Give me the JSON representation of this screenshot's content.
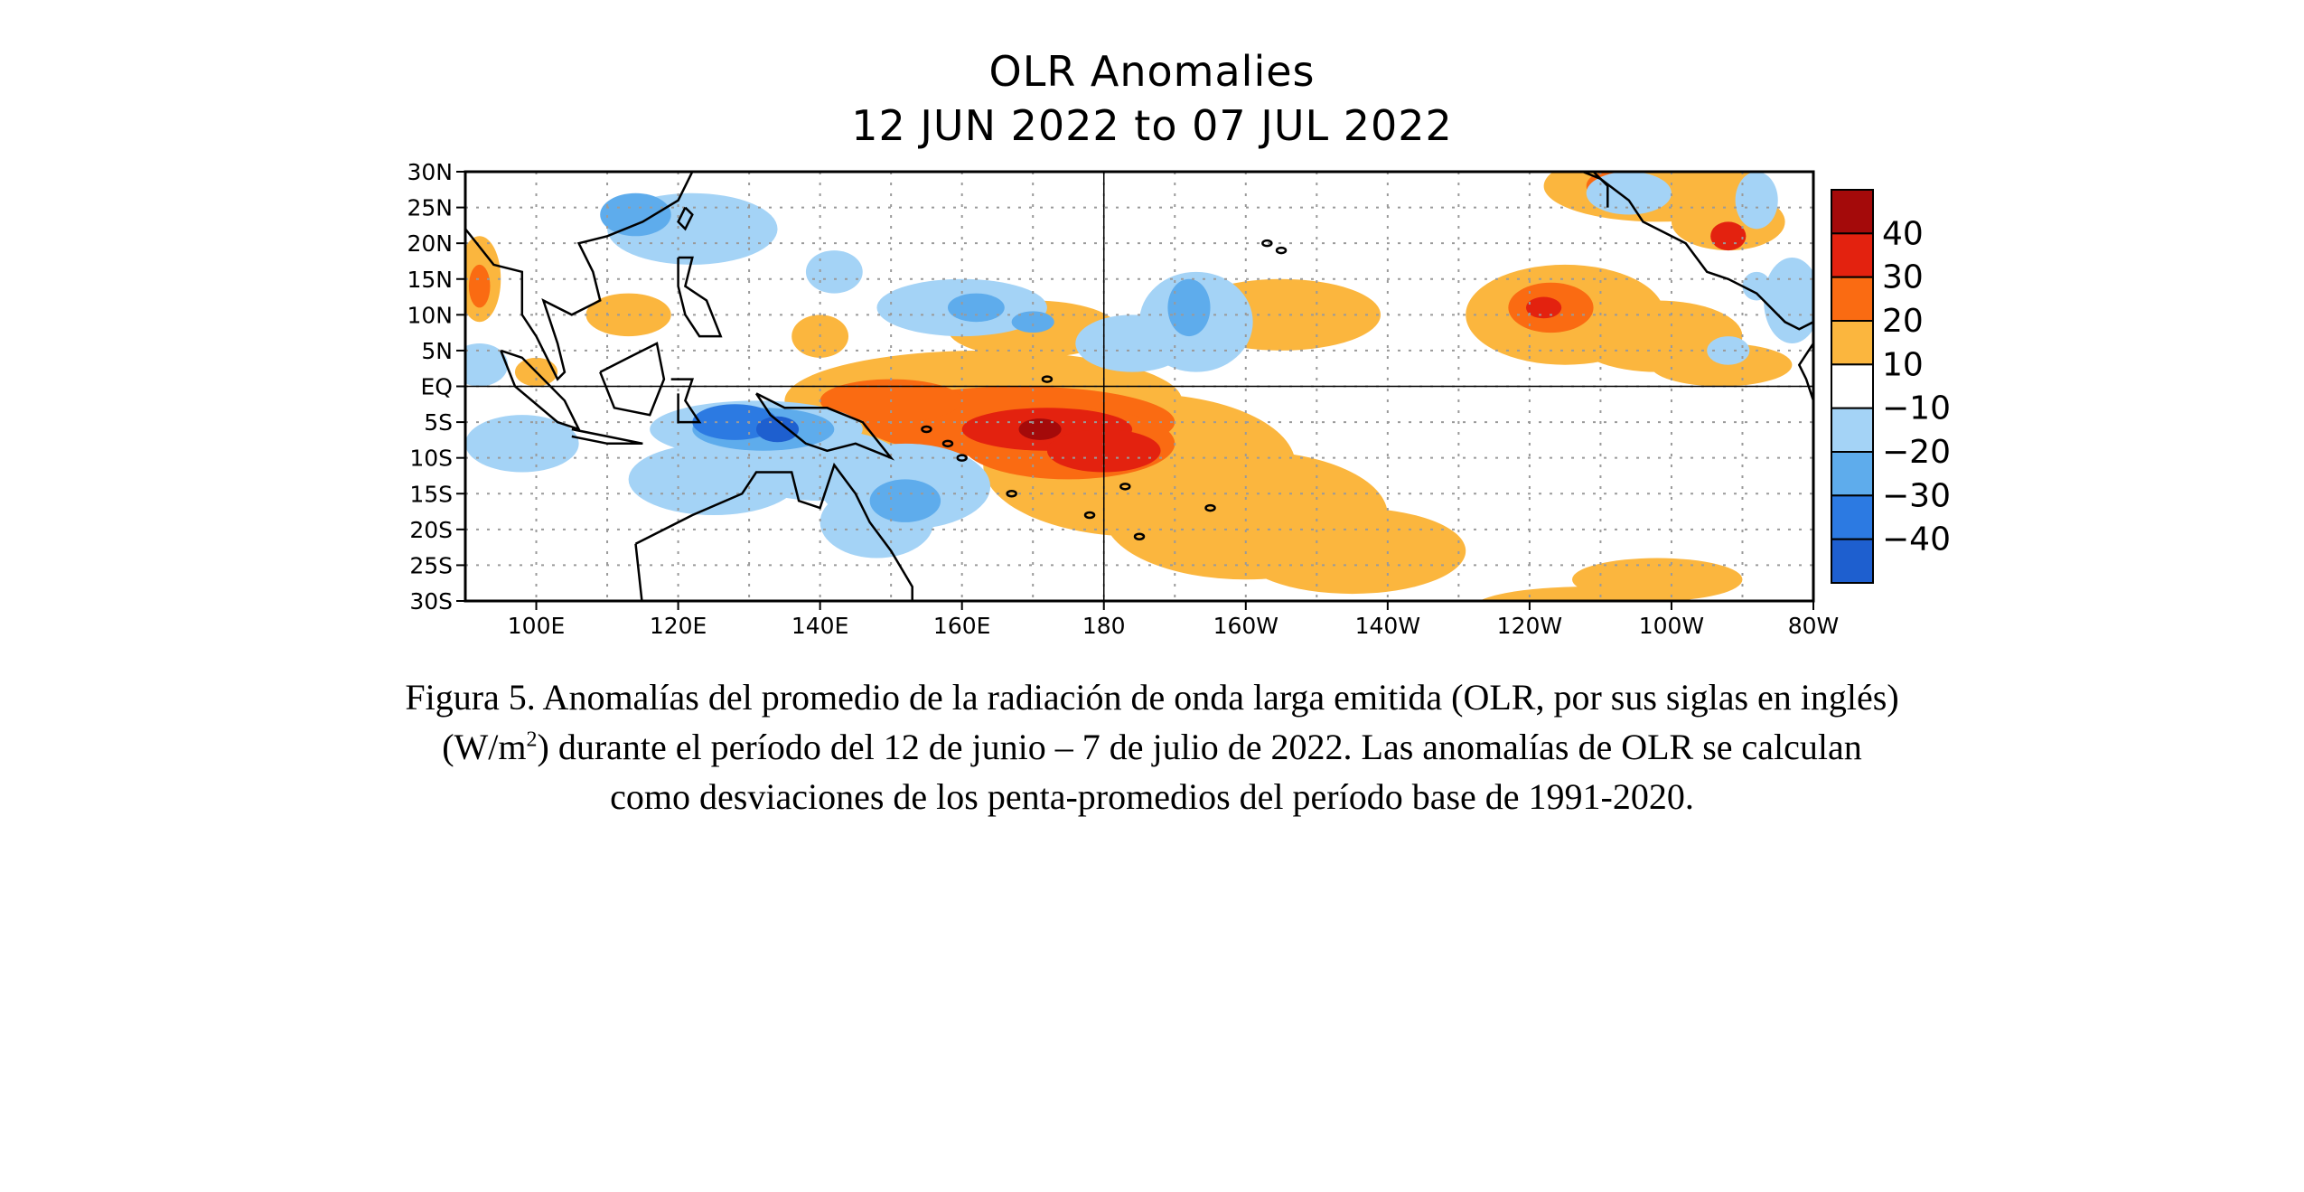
{
  "figure": {
    "title_line1": "OLR Anomalies",
    "title_line2": "12 JUN 2022 to 07 JUL 2022"
  },
  "map": {
    "lat_labels": [
      "30N",
      "25N",
      "20N",
      "15N",
      "10N",
      "5N",
      "EQ",
      "5S",
      "10S",
      "15S",
      "20S",
      "25S",
      "30S"
    ],
    "lon_labels": [
      "100E",
      "120E",
      "140E",
      "160E",
      "180",
      "160W",
      "140W",
      "120W",
      "100W",
      "80W"
    ],
    "grid_dotted": true,
    "reference_lines": [
      "EQ",
      "180"
    ],
    "colors": {
      "pos10_20": "#fbb63e",
      "pos20_30": "#fa6b12",
      "pos30_40": "#e3220f",
      "pos40": "#a40a0a",
      "neg10_20": "#a4d3f6",
      "neg20_30": "#5eacec",
      "neg30_40": "#2c7ae2",
      "neg40": "#1e5fcf",
      "coastline": "#000000"
    }
  },
  "colorbar": {
    "labels": [
      "40",
      "30",
      "20",
      "10",
      "−10",
      "−20",
      "−30",
      "−40"
    ],
    "colors": [
      "#a40a0a",
      "#e3220f",
      "#fa6b12",
      "#fbb63e",
      "#ffffff",
      "#a4d3f6",
      "#5eacec",
      "#2c7ae2",
      "#1e5fcf"
    ]
  },
  "caption": {
    "line1": "Figura 5. Anomalías del promedio de la radiación de onda larga emitida (OLR, por sus siglas en inglés)",
    "line2_pre": "(W/m",
    "line2_sup": "2",
    "line2_post": ") durante el período del 12 de junio – 7 de julio de 2022.  Las anomalías de OLR se calculan",
    "line3": "como desviaciones de los penta-promedios del período base de 1991-2020."
  }
}
